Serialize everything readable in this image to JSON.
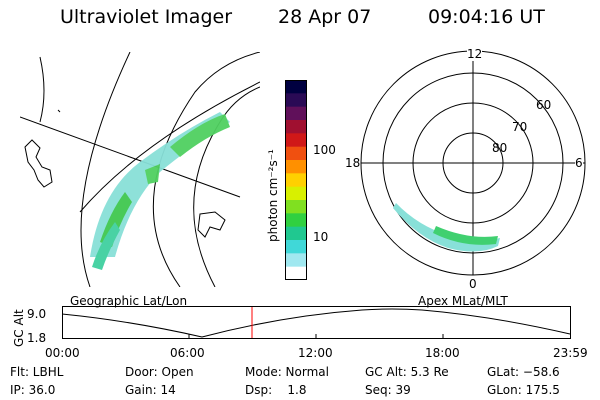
{
  "header": {
    "title": "Ultraviolet Imager",
    "date": "28 Apr 07",
    "time": "09:04:16 UT"
  },
  "colorbar": {
    "label": "photon cm⁻²s⁻¹",
    "ticks": [
      "100",
      "10"
    ],
    "colors": [
      "#000040",
      "#2a0a55",
      "#60105a",
      "#a01030",
      "#d01818",
      "#f05010",
      "#ff9000",
      "#ffd000",
      "#d8f000",
      "#80e020",
      "#30d040",
      "#20c890",
      "#40d8d8",
      "#a0e8f0",
      "#ffffff"
    ]
  },
  "geographic_panel": {
    "title": "Geographic Lat/Lon"
  },
  "polar_panel": {
    "title": "Apex MLat/MLT",
    "mlt_labels": [
      "12",
      "18",
      "6",
      "0"
    ],
    "lat_labels": [
      "60",
      "70",
      "80"
    ]
  },
  "altitude_plot": {
    "ylabel": "GC Alt",
    "yticks": [
      "9.0",
      "1.8"
    ],
    "xticks": [
      "00:00",
      "06:00",
      "12:00",
      "18:00",
      "23:59"
    ],
    "current_time_marker": "09:04",
    "marker_color": "#ff0000"
  },
  "status": {
    "flt": "Flt: LBHL",
    "ip": "IP: 36.0",
    "door": "Door: Open",
    "gain": "Gain: 14",
    "mode": "Mode: Normal",
    "dsp": "Dsp:    1.8",
    "gcalt": "GC Alt: 5.3 Re",
    "seq": "Seq: 39",
    "glat": "GLat: −58.6",
    "glon": "GLon: 175.5"
  }
}
